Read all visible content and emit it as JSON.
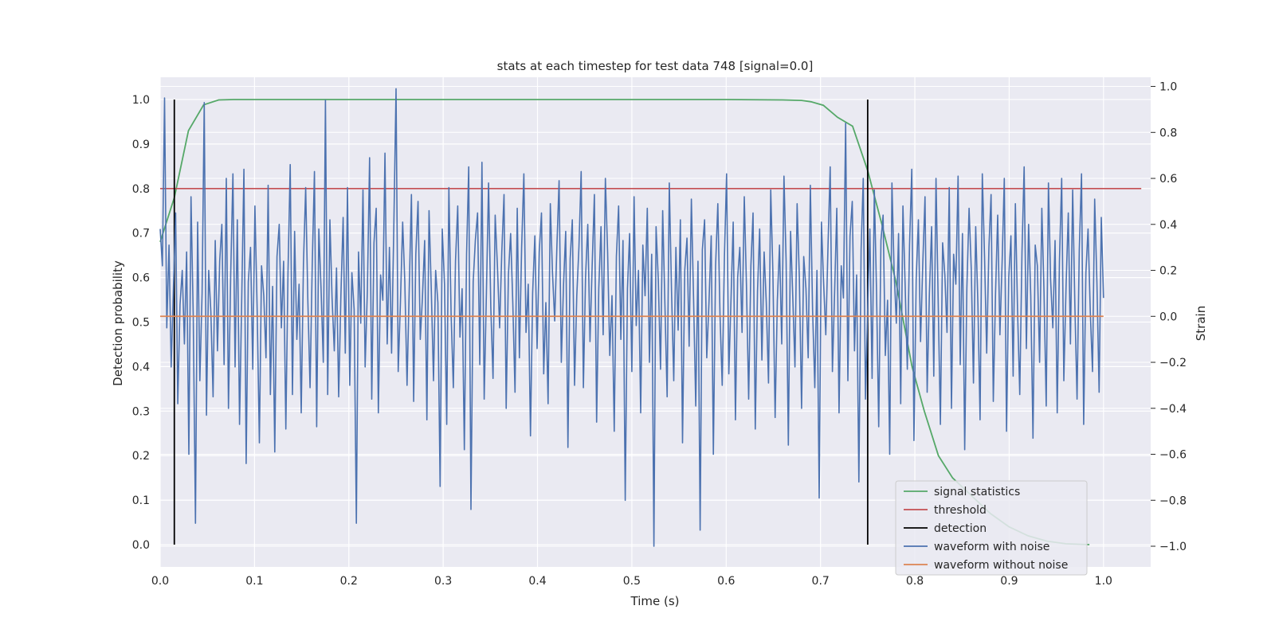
{
  "chart_data": {
    "type": "line",
    "title": "stats at each timestep for test data 748 [signal=0.0]",
    "xlabel": "Time (s)",
    "ylabel": "Detection probability",
    "ylabel_right": "Strain",
    "xlim": [
      0.0,
      1.05
    ],
    "ylim": [
      -0.05,
      1.05
    ],
    "ylim_right": [
      -1.09,
      1.04
    ],
    "xticks": [
      "0.0",
      "0.1",
      "0.2",
      "0.3",
      "0.4",
      "0.5",
      "0.6",
      "0.7",
      "0.8",
      "0.9",
      "1.0"
    ],
    "yticks": [
      "0.0",
      "0.1",
      "0.2",
      "0.3",
      "0.4",
      "0.5",
      "0.6",
      "0.7",
      "0.8",
      "0.9",
      "1.0"
    ],
    "yticks_right": [
      "−1.0",
      "−0.8",
      "−0.6",
      "−0.4",
      "−0.2",
      "0.0",
      "0.2",
      "0.4",
      "0.6",
      "0.8",
      "1.0"
    ],
    "grid": true,
    "legend_position": "lower-right",
    "series": [
      {
        "name": "signal statistics",
        "color": "#55a868",
        "axis": "left",
        "x": [
          0.0,
          0.015,
          0.03,
          0.046,
          0.062,
          0.078,
          0.1,
          0.2,
          0.3,
          0.4,
          0.5,
          0.6,
          0.66,
          0.68,
          0.69,
          0.703,
          0.718,
          0.734,
          0.75,
          0.765,
          0.78,
          0.797,
          0.81,
          0.825,
          0.84,
          0.86,
          0.88,
          0.9,
          0.92,
          0.94,
          0.96,
          0.985
        ],
        "y": [
          0.68,
          0.78,
          0.93,
          0.988,
          0.999,
          1.0,
          1.0,
          1.0,
          1.0,
          1.0,
          1.0,
          1.0,
          0.999,
          0.998,
          0.995,
          0.987,
          0.96,
          0.94,
          0.84,
          0.72,
          0.59,
          0.4,
          0.3,
          0.2,
          0.15,
          0.11,
          0.07,
          0.04,
          0.02,
          0.008,
          0.002,
          0.0
        ]
      },
      {
        "name": "threshold",
        "color": "#c44e52",
        "axis": "left",
        "x": [
          0.0,
          1.04
        ],
        "y": [
          0.8,
          0.8
        ]
      },
      {
        "name": "detection",
        "color": "#000000",
        "axis": "left",
        "segments": [
          {
            "x": 0.015,
            "y": [
              0.0,
              1.0
            ]
          },
          {
            "x": 0.75,
            "y": [
              0.0,
              1.0
            ]
          }
        ]
      },
      {
        "name": "waveform with noise",
        "color": "#4c72b0",
        "axis": "right",
        "x_range": [
          0.0,
          1.0
        ],
        "y": [
          0.38,
          0.22,
          0.95,
          -0.05,
          0.31,
          -0.22,
          0.12,
          0.45,
          -0.38,
          0.05,
          0.2,
          -0.12,
          0.28,
          -0.6,
          0.52,
          0.0,
          -0.9,
          0.41,
          -0.28,
          0.1,
          0.93,
          -0.43,
          0.2,
          0.02,
          -0.35,
          0.33,
          -0.15,
          0.24,
          0.4,
          -0.21,
          0.6,
          -0.4,
          0.18,
          0.62,
          -0.22,
          0.42,
          -0.47,
          0.07,
          0.64,
          -0.64,
          0.15,
          0.3,
          -0.23,
          0.48,
          0.03,
          -0.55,
          0.22,
          0.09,
          -0.18,
          0.57,
          -0.34,
          0.13,
          -0.59,
          0.26,
          0.4,
          -0.05,
          0.24,
          -0.49,
          0.19,
          0.66,
          -0.34,
          0.37,
          -0.1,
          0.14,
          -0.42,
          0.23,
          0.56,
          0.07,
          -0.31,
          0.22,
          0.63,
          -0.48,
          0.38,
          0.12,
          -0.2,
          0.94,
          -0.34,
          0.42,
          0.08,
          -0.15,
          0.21,
          -0.35,
          0.09,
          0.43,
          -0.16,
          0.56,
          -0.3,
          0.19,
          0.03,
          -0.9,
          0.28,
          -0.03,
          0.55,
          -0.22,
          0.11,
          0.69,
          -0.36,
          0.32,
          0.47,
          -0.42,
          0.18,
          0.07,
          0.71,
          -0.12,
          0.3,
          -0.16,
          0.39,
          0.99,
          -0.24,
          0.06,
          0.41,
          0.15,
          -0.3,
          0.11,
          0.53,
          -0.37,
          0.27,
          0.5,
          -0.1,
          0.08,
          0.33,
          -0.45,
          0.46,
          0.12,
          -0.28,
          0.2,
          0.06,
          -0.74,
          0.38,
          0.14,
          -0.47,
          0.56,
          0.01,
          -0.31,
          0.24,
          0.48,
          -0.09,
          0.12,
          -0.58,
          0.27,
          0.65,
          -0.84,
          0.15,
          0.33,
          0.45,
          -0.21,
          0.67,
          -0.36,
          0.1,
          0.58,
          0.04,
          -0.27,
          0.44,
          0.22,
          -0.05,
          0.28,
          0.53,
          -0.4,
          0.18,
          0.36,
          0.06,
          -0.33,
          0.47,
          -0.18,
          0.3,
          0.62,
          -0.07,
          0.14,
          -0.52,
          0.1,
          0.35,
          -0.14,
          0.28,
          0.45,
          -0.25,
          0.06,
          -0.38,
          0.49,
          0.19,
          -0.02,
          0.31,
          0.59,
          -0.2,
          0.14,
          0.37,
          -0.57,
          0.25,
          0.42,
          -0.3,
          0.09,
          0.3,
          0.63,
          -0.31,
          0.17,
          0.4,
          -0.11,
          0.22,
          0.53,
          -0.46,
          0.12,
          0.39,
          -0.08,
          0.6,
          0.28,
          -0.17,
          0.09,
          -0.5,
          0.26,
          0.48,
          -0.1,
          0.33,
          -0.8,
          0.12,
          0.36,
          -0.24,
          0.52,
          -0.04,
          0.2,
          -0.42,
          0.31,
          0.09,
          0.47,
          -0.2,
          0.27,
          -1.0,
          0.39,
          0.16,
          -0.23,
          0.46,
          0.05,
          -0.35,
          0.58,
          0.11,
          -0.28,
          0.3,
          -0.06,
          0.42,
          -0.55,
          0.2,
          0.34,
          -0.13,
          0.51,
          0.07,
          -0.39,
          0.24,
          -0.93,
          0.29,
          0.42,
          -0.18,
          0.06,
          0.35,
          -0.6,
          0.22,
          0.49,
          0.01,
          -0.3,
          0.26,
          0.62,
          -0.25,
          0.08,
          0.41,
          -0.45,
          0.17,
          0.3,
          -0.07,
          0.52,
          0.14,
          -0.36,
          0.22,
          0.45,
          -0.49,
          0.11,
          0.38,
          -0.19,
          0.28,
          0.06,
          -0.29,
          0.55,
          0.19,
          -0.44,
          0.07,
          0.31,
          -0.12,
          0.61,
          0.24,
          -0.56,
          0.37,
          0.09,
          -0.22,
          0.49,
          0.17,
          -0.4,
          0.26,
          0.12,
          -0.18,
          0.57,
          0.03,
          -0.31,
          0.2,
          -0.79,
          0.41,
          0.15,
          -0.08,
          0.31,
          0.65,
          -0.24,
          0.11,
          0.47,
          -0.42,
          0.22,
          0.08,
          0.84,
          -0.28,
          0.35,
          0.5,
          -0.15,
          0.18,
          -0.72,
          0.29,
          0.6,
          -0.36,
          0.04,
          0.38,
          -0.27,
          0.55,
          0.12,
          -0.48,
          0.33,
          0.44,
          -0.17,
          0.07,
          -0.6,
          0.58,
          0.2,
          -0.03,
          0.36,
          -0.38,
          0.48,
          0.13,
          -0.23,
          0.31,
          0.64,
          -0.54,
          0.16,
          0.42,
          -0.11,
          0.23,
          0.52,
          -0.33,
          0.1,
          0.39,
          -0.26,
          0.6,
          0.05,
          -0.47,
          0.32,
          0.18,
          -0.07,
          0.56,
          -0.4,
          0.27,
          0.14,
          0.61,
          -0.21,
          0.36,
          -0.58,
          0.12,
          0.47,
          0.2,
          -0.29,
          0.39,
          0.05,
          -0.45,
          0.62,
          0.26,
          -0.16,
          0.3,
          0.53,
          -0.37,
          0.1,
          0.44,
          -0.08,
          0.24,
          0.6,
          -0.5,
          0.17,
          0.35,
          -0.26,
          0.49,
          0.03,
          -0.34,
          0.28,
          0.65,
          -0.14,
          0.4,
          0.09,
          -0.53,
          0.31,
          0.22,
          -0.2,
          0.47,
          0.11,
          -0.39,
          0.58,
          0.16,
          -0.05,
          0.33,
          -0.42,
          0.24,
          0.6,
          -0.28,
          0.13,
          0.45,
          -0.12,
          0.55,
          0.04,
          -0.36,
          0.29,
          0.62,
          -0.47,
          0.19,
          0.38,
          0.02,
          -0.24,
          0.51,
          0.15,
          -0.33,
          0.43,
          0.08
        ],
        "note_points": "sampled"
      },
      {
        "name": "waveform without noise",
        "color": "#dd8452",
        "axis": "right",
        "x": [
          0.0,
          1.0
        ],
        "y": [
          0.0,
          0.0
        ]
      }
    ]
  }
}
